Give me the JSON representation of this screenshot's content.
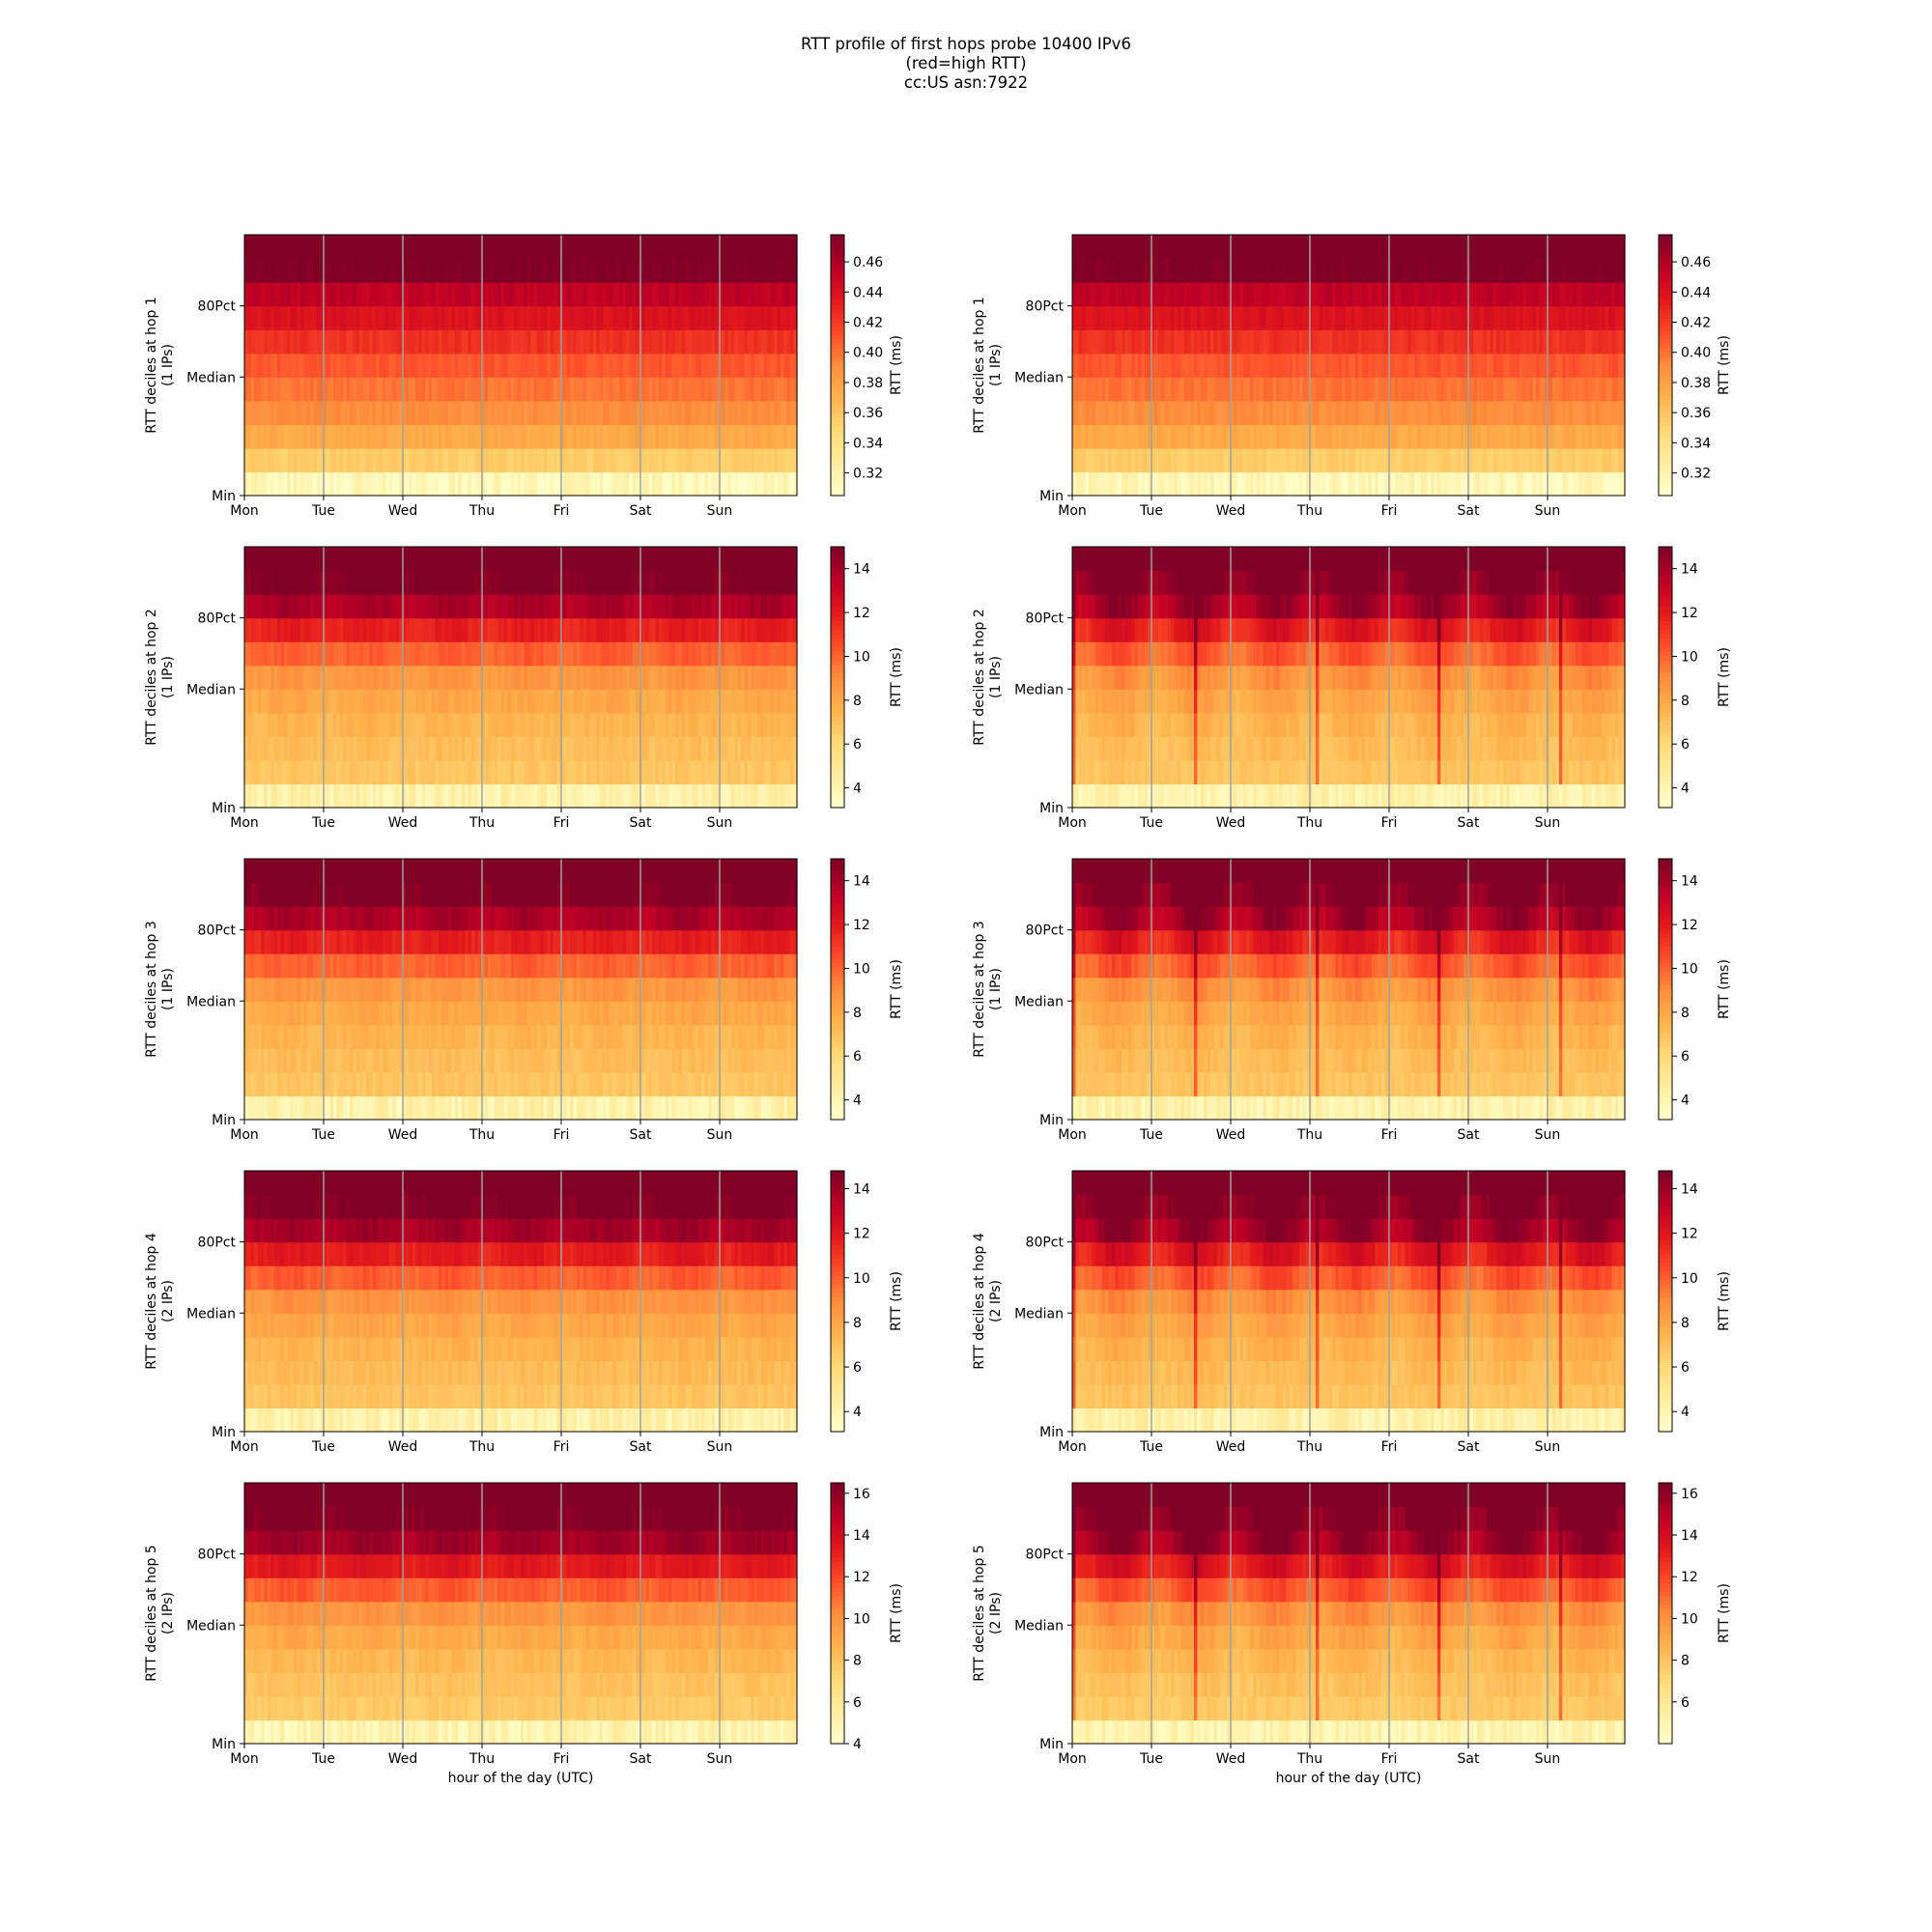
{
  "title_lines": [
    "RTT profile of first hops probe 10400 IPv6",
    "(red=high RTT)",
    "cc:US asn:7922"
  ],
  "colors": {
    "colormap": [
      "#ffffcc",
      "#ffeda0",
      "#fed976",
      "#feb24c",
      "#fd8d3c",
      "#fc4e2a",
      "#e31a1c",
      "#bd0026",
      "#800026"
    ],
    "separator": "#a0a0a0"
  },
  "chart_data": [
    {
      "type": "heatmap",
      "id": "h1-left",
      "hop": 1,
      "ylabel_lines": [
        "RTT deciles at hop 1",
        "(1 IPs)"
      ],
      "xlabel": "",
      "x_ticks": [
        "Mon",
        "Tue",
        "Wed",
        "Thu",
        "Fri",
        "Sat",
        "Sun"
      ],
      "y_ticks": [
        "Min",
        "Median",
        "80Pct"
      ],
      "colorbar_label": "RTT (ms)",
      "colorbar_ticks": [
        0.32,
        0.34,
        0.36,
        0.38,
        0.4,
        0.42,
        0.44,
        0.46
      ],
      "colorbar_tick_labels": [
        "0.32",
        "0.34",
        "0.36",
        "0.38",
        "0.40",
        "0.42",
        "0.44",
        "0.46"
      ],
      "vmin": 0.305,
      "vmax": 0.478,
      "decile_values": [
        0.315,
        0.355,
        0.375,
        0.39,
        0.4,
        0.41,
        0.425,
        0.44,
        0.455,
        0.478
      ],
      "daily_pattern": 0
    },
    {
      "type": "heatmap",
      "id": "h1-right",
      "hop": 1,
      "ylabel_lines": [
        "RTT deciles at hop 1",
        "(1 IPs)"
      ],
      "xlabel": "",
      "x_ticks": [
        "Mon",
        "Tue",
        "Wed",
        "Thu",
        "Fri",
        "Sat",
        "Sun"
      ],
      "y_ticks": [
        "Min",
        "Median",
        "80Pct"
      ],
      "colorbar_label": "RTT (ms)",
      "colorbar_ticks": [
        0.32,
        0.34,
        0.36,
        0.38,
        0.4,
        0.42,
        0.44,
        0.46
      ],
      "colorbar_tick_labels": [
        "0.32",
        "0.34",
        "0.36",
        "0.38",
        "0.40",
        "0.42",
        "0.44",
        "0.46"
      ],
      "vmin": 0.305,
      "vmax": 0.478,
      "decile_values": [
        0.315,
        0.355,
        0.375,
        0.39,
        0.4,
        0.41,
        0.425,
        0.44,
        0.455,
        0.478
      ],
      "daily_pattern": 0
    },
    {
      "type": "heatmap",
      "id": "h2-left",
      "hop": 2,
      "ylabel_lines": [
        "RTT deciles at hop 2",
        "(1 IPs)"
      ],
      "xlabel": "",
      "x_ticks": [
        "Mon",
        "Tue",
        "Wed",
        "Thu",
        "Fri",
        "Sat",
        "Sun"
      ],
      "y_ticks": [
        "Min",
        "Median",
        "80Pct"
      ],
      "colorbar_label": "RTT (ms)",
      "colorbar_ticks": [
        4,
        6,
        8,
        10,
        12,
        14
      ],
      "colorbar_tick_labels": [
        "4",
        "6",
        "8",
        "10",
        "12",
        "14"
      ],
      "vmin": 3.1,
      "vmax": 15.0,
      "decile_values": [
        4.2,
        6.8,
        7.1,
        7.4,
        7.9,
        8.6,
        10.0,
        11.8,
        13.8,
        15.0
      ],
      "daily_pattern": 0.35
    },
    {
      "type": "heatmap",
      "id": "h2-right",
      "hop": 2,
      "ylabel_lines": [
        "RTT deciles at hop 2",
        "(1 IPs)"
      ],
      "xlabel": "",
      "x_ticks": [
        "Mon",
        "Tue",
        "Wed",
        "Thu",
        "Fri",
        "Sat",
        "Sun"
      ],
      "y_ticks": [
        "Min",
        "Median",
        "80Pct"
      ],
      "colorbar_label": "RTT (ms)",
      "colorbar_ticks": [
        4,
        6,
        8,
        10,
        12,
        14
      ],
      "colorbar_tick_labels": [
        "4",
        "6",
        "8",
        "10",
        "12",
        "14"
      ],
      "vmin": 3.1,
      "vmax": 15.0,
      "decile_values": [
        4.2,
        6.8,
        7.1,
        7.4,
        7.9,
        8.6,
        10.0,
        11.8,
        13.8,
        15.0
      ],
      "daily_pattern": 1.0
    },
    {
      "type": "heatmap",
      "id": "h3-left",
      "hop": 3,
      "ylabel_lines": [
        "RTT deciles at hop 3",
        "(1 IPs)"
      ],
      "xlabel": "",
      "x_ticks": [
        "Mon",
        "Tue",
        "Wed",
        "Thu",
        "Fri",
        "Sat",
        "Sun"
      ],
      "y_ticks": [
        "Min",
        "Median",
        "80Pct"
      ],
      "colorbar_label": "RTT (ms)",
      "colorbar_ticks": [
        4,
        6,
        8,
        10,
        12,
        14
      ],
      "colorbar_tick_labels": [
        "4",
        "6",
        "8",
        "10",
        "12",
        "14"
      ],
      "vmin": 3.1,
      "vmax": 15.0,
      "decile_values": [
        4.2,
        6.8,
        7.1,
        7.4,
        7.9,
        8.6,
        10.0,
        11.8,
        13.8,
        15.0
      ],
      "daily_pattern": 0.35
    },
    {
      "type": "heatmap",
      "id": "h3-right",
      "hop": 3,
      "ylabel_lines": [
        "RTT deciles at hop 3",
        "(1 IPs)"
      ],
      "xlabel": "",
      "x_ticks": [
        "Mon",
        "Tue",
        "Wed",
        "Thu",
        "Fri",
        "Sat",
        "Sun"
      ],
      "y_ticks": [
        "Min",
        "Median",
        "80Pct"
      ],
      "colorbar_label": "RTT (ms)",
      "colorbar_ticks": [
        4,
        6,
        8,
        10,
        12,
        14
      ],
      "colorbar_tick_labels": [
        "4",
        "6",
        "8",
        "10",
        "12",
        "14"
      ],
      "vmin": 3.1,
      "vmax": 15.0,
      "decile_values": [
        4.2,
        6.8,
        7.1,
        7.4,
        7.9,
        8.6,
        10.0,
        11.8,
        13.8,
        15.0
      ],
      "daily_pattern": 1.0
    },
    {
      "type": "heatmap",
      "id": "h4-left",
      "hop": 4,
      "ylabel_lines": [
        "RTT deciles at hop 4",
        "(2 IPs)"
      ],
      "xlabel": "",
      "x_ticks": [
        "Mon",
        "Tue",
        "Wed",
        "Thu",
        "Fri",
        "Sat",
        "Sun"
      ],
      "y_ticks": [
        "Min",
        "Median",
        "80Pct"
      ],
      "colorbar_label": "RTT (ms)",
      "colorbar_ticks": [
        4,
        6,
        8,
        10,
        12,
        14
      ],
      "colorbar_tick_labels": [
        "4",
        "6",
        "8",
        "10",
        "12",
        "14"
      ],
      "vmin": 3.1,
      "vmax": 14.8,
      "decile_values": [
        4.2,
        6.8,
        7.1,
        7.4,
        7.9,
        8.6,
        10.0,
        11.8,
        13.8,
        14.8
      ],
      "daily_pattern": 0.35
    },
    {
      "type": "heatmap",
      "id": "h4-right",
      "hop": 4,
      "ylabel_lines": [
        "RTT deciles at hop 4",
        "(2 IPs)"
      ],
      "xlabel": "",
      "x_ticks": [
        "Mon",
        "Tue",
        "Wed",
        "Thu",
        "Fri",
        "Sat",
        "Sun"
      ],
      "y_ticks": [
        "Min",
        "Median",
        "80Pct"
      ],
      "colorbar_label": "RTT (ms)",
      "colorbar_ticks": [
        4,
        6,
        8,
        10,
        12,
        14
      ],
      "colorbar_tick_labels": [
        "4",
        "6",
        "8",
        "10",
        "12",
        "14"
      ],
      "vmin": 3.1,
      "vmax": 14.8,
      "decile_values": [
        4.2,
        6.8,
        7.1,
        7.4,
        7.9,
        8.6,
        10.0,
        11.8,
        13.8,
        14.8
      ],
      "daily_pattern": 1.0
    },
    {
      "type": "heatmap",
      "id": "h5-left",
      "hop": 5,
      "ylabel_lines": [
        "RTT deciles at hop 5",
        "(2 IPs)"
      ],
      "xlabel": "hour of the day (UTC)",
      "x_ticks": [
        "Mon",
        "Tue",
        "Wed",
        "Thu",
        "Fri",
        "Sat",
        "Sun"
      ],
      "y_ticks": [
        "Min",
        "Median",
        "80Pct"
      ],
      "colorbar_label": "RTT (ms)",
      "colorbar_ticks": [
        4,
        6,
        8,
        10,
        12,
        14,
        16
      ],
      "colorbar_tick_labels": [
        "4",
        "6",
        "8",
        "10",
        "12",
        "14",
        "16"
      ],
      "vmin": 4.0,
      "vmax": 16.5,
      "decile_values": [
        5.0,
        7.7,
        8.0,
        8.4,
        9.0,
        9.8,
        11.4,
        13.4,
        15.6,
        16.5
      ],
      "daily_pattern": 0.35
    },
    {
      "type": "heatmap",
      "id": "h5-right",
      "hop": 5,
      "ylabel_lines": [
        "RTT deciles at hop 5",
        "(2 IPs)"
      ],
      "xlabel": "hour of the day (UTC)",
      "x_ticks": [
        "Mon",
        "Tue",
        "Wed",
        "Thu",
        "Fri",
        "Sat",
        "Sun"
      ],
      "y_ticks": [
        "Median",
        "80Pct",
        "Min"
      ],
      "colorbar_label": "RTT (ms)",
      "colorbar_ticks": [
        6,
        8,
        10,
        12,
        14,
        16
      ],
      "colorbar_tick_labels": [
        "6",
        "8",
        "10",
        "12",
        "14",
        "16"
      ],
      "vmin": 4.0,
      "vmax": 16.5,
      "decile_values": [
        5.0,
        7.7,
        8.0,
        8.4,
        9.0,
        9.8,
        11.4,
        13.4,
        15.6,
        16.5
      ],
      "daily_pattern": 1.0
    }
  ]
}
